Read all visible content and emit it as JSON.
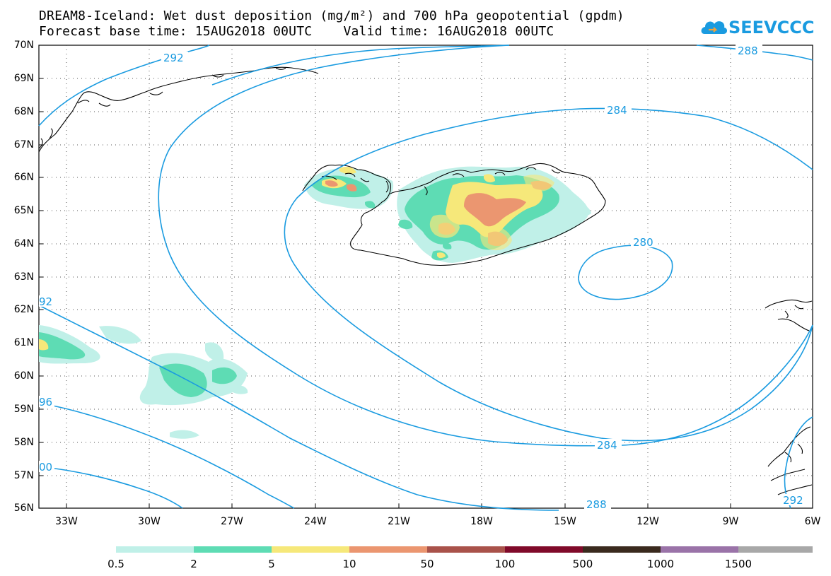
{
  "title": {
    "line1": "DREAM8-Iceland: Wet dust deposition (mg/m²) and 700 hPa geopotential (gpdm)",
    "line2": "Forecast base time: 15AUG2018 00UTC    Valid time: 16AUG2018 00UTC"
  },
  "logo": {
    "text": "SEEVCCC",
    "color": "#1a9be0"
  },
  "map": {
    "lat_labels": [
      "70N",
      "69N",
      "68N",
      "67N",
      "66N",
      "65N",
      "64N",
      "63N",
      "62N",
      "61N",
      "60N",
      "59N",
      "58N",
      "57N",
      "56N"
    ],
    "lon_labels": [
      "33W",
      "30W",
      "27W",
      "24W",
      "21W",
      "18W",
      "15W",
      "12W",
      "9W",
      "6W"
    ],
    "contour_color": "#1a9be0",
    "contour_labels": [
      "292",
      "288",
      "284",
      "280",
      "92",
      "96",
      "00",
      "284",
      "288",
      "292"
    ]
  },
  "legend": {
    "labels": [
      "0.5",
      "2",
      "5",
      "10",
      "50",
      "100",
      "500",
      "1000",
      "1500"
    ],
    "colors": [
      "#c0f0e8",
      "#5edcb4",
      "#f6e87a",
      "#eb9670",
      "#a9524a",
      "#800a2a",
      "#3a2a1e",
      "#9a73a8",
      "#a8a8a8"
    ]
  }
}
